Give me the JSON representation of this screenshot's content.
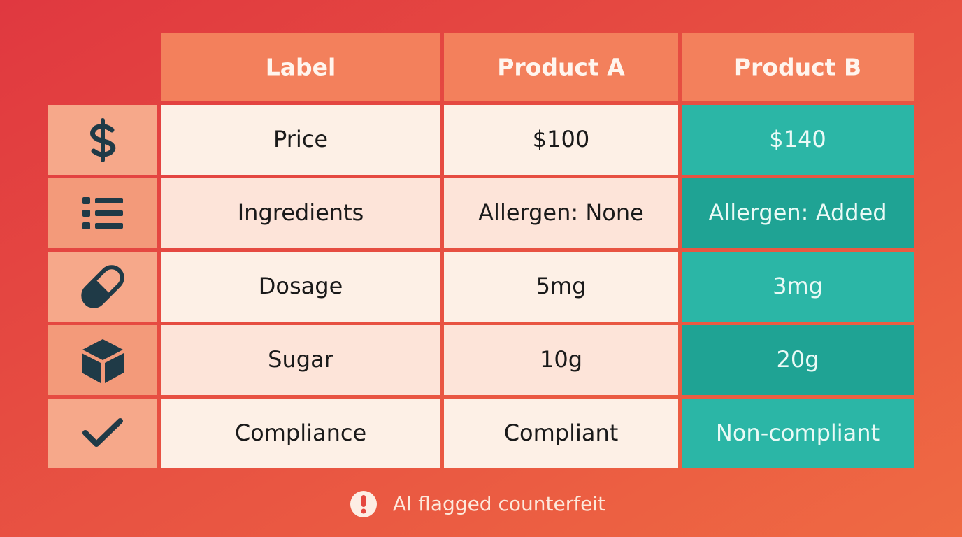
{
  "header": {
    "columns": [
      "Label",
      "Product A",
      "Product B"
    ]
  },
  "table": {
    "rows": [
      [
        "Price",
        "$100",
        "$140"
      ],
      [
        "Ingredients",
        "Allergen: None",
        "Allergen: Added"
      ],
      [
        "Dosage",
        "5mg",
        "3mg"
      ],
      [
        "Sugar",
        "10g",
        "20g"
      ],
      [
        "Compliance",
        "Compliant",
        "Non-compliant"
      ]
    ]
  },
  "footer": {
    "text": "AI flagged counterfeit"
  }
}
